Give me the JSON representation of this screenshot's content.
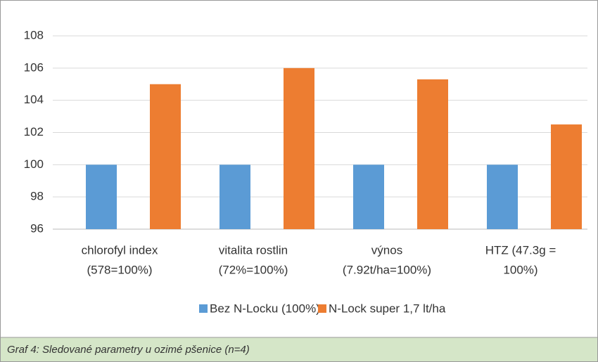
{
  "chart_data": {
    "type": "bar",
    "categories": [
      [
        "chlorofyl index",
        "(578=100%)"
      ],
      [
        "vitalita rostlin",
        "(72%=100%)"
      ],
      [
        "výnos",
        "(7.92t/ha=100%)"
      ],
      [
        "HTZ (47.3g =",
        "100%)"
      ]
    ],
    "series": [
      {
        "name": "Bez N-Locku (100%)",
        "color": "#5b9bd5",
        "values": [
          100,
          100,
          100,
          100
        ]
      },
      {
        "name": "N-Lock super 1,7 lt/ha",
        "color": "#ed7d31",
        "values": [
          105,
          106,
          105.3,
          102.5
        ]
      }
    ],
    "ylim": [
      96,
      108
    ],
    "yticks": [
      96,
      98,
      100,
      102,
      104,
      106,
      108
    ],
    "grid": true,
    "caption": "Graf 4: Sledované parametry u ozimé pšenice (n=4)"
  }
}
